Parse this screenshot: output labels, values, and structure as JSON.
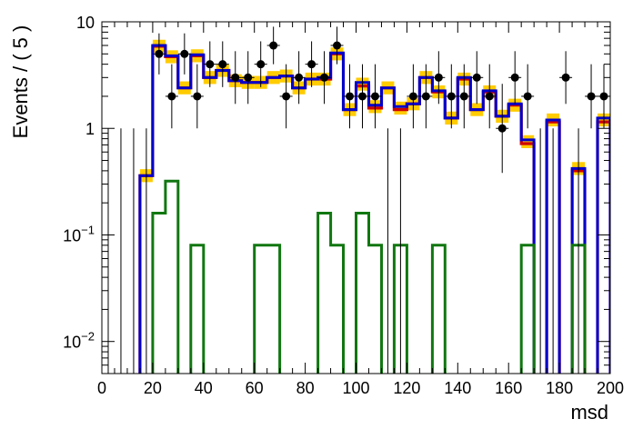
{
  "chart_data": {
    "type": "histogram",
    "ylabel": "Events / ( 5 )",
    "xlabel": "msd",
    "xlim": [
      0,
      200
    ],
    "ylim": [
      0.005,
      10
    ],
    "yscale": "log",
    "bin_width": 5,
    "x_ticks": [
      "0",
      "20",
      "40",
      "60",
      "80",
      "100",
      "120",
      "140",
      "160",
      "180",
      "200"
    ],
    "x_tick_values": [
      0,
      20,
      40,
      60,
      80,
      100,
      120,
      140,
      160,
      180,
      200
    ],
    "y_ticks": [
      {
        "value": 10,
        "mantissa": "10",
        "exp": ""
      },
      {
        "value": 1,
        "mantissa": "1",
        "exp": ""
      },
      {
        "value": 0.1,
        "mantissa": "10",
        "exp": "−1"
      },
      {
        "value": 0.01,
        "mantissa": "10",
        "exp": "−2"
      }
    ],
    "colors": {
      "data": "#000000",
      "band": "#ffcc00",
      "red": "#cc0000",
      "blue": "#0000cc",
      "green": "#117711"
    },
    "bin_edges": [
      0,
      5,
      10,
      15,
      20,
      25,
      30,
      35,
      40,
      45,
      50,
      55,
      60,
      65,
      70,
      75,
      80,
      85,
      90,
      95,
      100,
      105,
      110,
      115,
      120,
      125,
      130,
      135,
      140,
      145,
      150,
      155,
      160,
      165,
      170,
      175,
      180,
      185,
      190,
      195,
      200
    ],
    "series": [
      {
        "role": "band",
        "values": [
          0,
          0,
          0,
          0.36,
          5.9,
          4.7,
          2.4,
          4.8,
          3.0,
          3.5,
          2.8,
          2.7,
          2.7,
          3.0,
          3.1,
          2.4,
          2.9,
          2.9,
          5.0,
          1.5,
          2.6,
          1.6,
          2.4,
          1.55,
          1.7,
          3.0,
          2.2,
          1.25,
          2.9,
          1.5,
          2.2,
          1.3,
          1.65,
          0.75,
          0,
          1.2,
          0,
          0.42,
          0,
          1.2
        ]
      },
      {
        "role": "red",
        "values": [
          0,
          0,
          0,
          0.36,
          5.9,
          4.7,
          2.4,
          4.8,
          3.0,
          3.5,
          2.8,
          2.7,
          2.7,
          3.0,
          3.1,
          2.4,
          2.9,
          2.9,
          5.0,
          1.5,
          2.5,
          1.55,
          2.4,
          1.5,
          1.7,
          3.0,
          2.2,
          1.25,
          2.9,
          1.5,
          2.2,
          1.3,
          1.65,
          0.72,
          0,
          1.15,
          0,
          0.4,
          0,
          1.15
        ]
      },
      {
        "role": "blue",
        "values": [
          0,
          0,
          0,
          0.36,
          6.0,
          4.8,
          2.4,
          4.9,
          3.0,
          3.5,
          2.8,
          2.7,
          2.7,
          3.0,
          3.1,
          2.4,
          2.9,
          3.0,
          5.1,
          1.5,
          2.7,
          1.65,
          2.4,
          1.6,
          1.7,
          3.0,
          2.25,
          1.25,
          3.0,
          1.5,
          2.25,
          1.3,
          1.7,
          0.78,
          0,
          1.2,
          0,
          0.42,
          0,
          1.25
        ]
      },
      {
        "role": "green",
        "values": [
          0,
          0,
          0,
          0,
          0.16,
          0.32,
          0,
          0.08,
          0,
          0,
          0,
          0,
          0.08,
          0.08,
          0,
          0,
          0,
          0.16,
          0.08,
          0,
          0.16,
          0.08,
          0,
          0.08,
          0,
          0,
          0.08,
          0,
          0,
          0,
          0,
          0,
          0,
          0.08,
          0,
          0,
          0,
          0.08,
          0,
          0
        ]
      }
    ],
    "data_points": {
      "x": [
        2.5,
        7.5,
        12.5,
        17.5,
        22.5,
        27.5,
        32.5,
        37.5,
        42.5,
        47.5,
        52.5,
        57.5,
        62.5,
        67.5,
        72.5,
        77.5,
        82.5,
        87.5,
        92.5,
        97.5,
        102.5,
        107.5,
        112.5,
        117.5,
        122.5,
        127.5,
        132.5,
        137.5,
        142.5,
        147.5,
        152.5,
        157.5,
        162.5,
        167.5,
        172.5,
        177.5,
        182.5,
        187.5,
        192.5,
        197.5
      ],
      "y": [
        0,
        0,
        0,
        0,
        5,
        2,
        5,
        2,
        4,
        4,
        3,
        3,
        4,
        6,
        2,
        3,
        4,
        3,
        6,
        2,
        2,
        2,
        0,
        0,
        2,
        2,
        3,
        2,
        2,
        3,
        2,
        1,
        3,
        2,
        0,
        0,
        3,
        0,
        2,
        2
      ]
    }
  }
}
